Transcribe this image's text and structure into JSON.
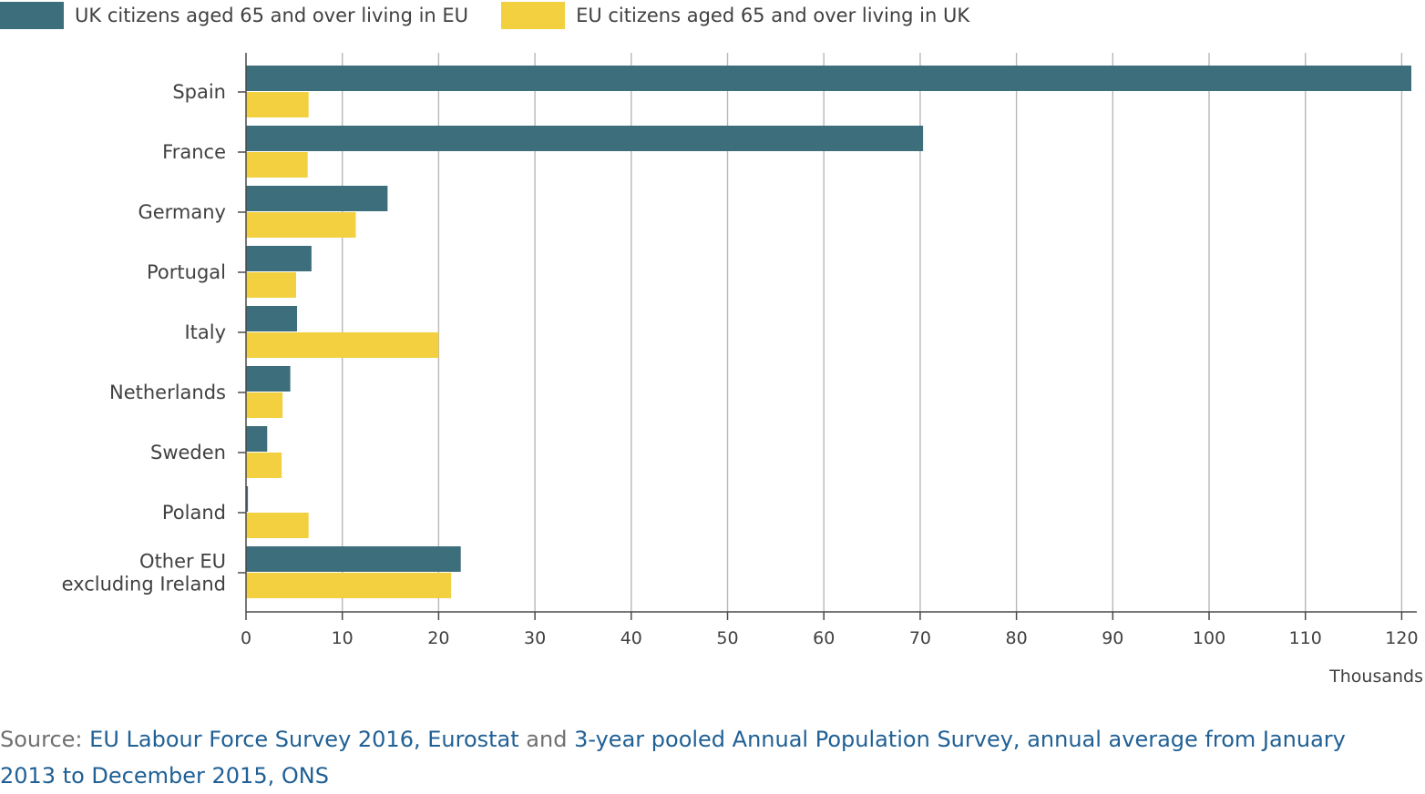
{
  "chart_data": {
    "type": "bar",
    "orientation": "horizontal",
    "categories": [
      "Spain",
      "France",
      "Germany",
      "Portugal",
      "Italy",
      "Netherlands",
      "Sweden",
      "Poland",
      "Other EU excluding Ireland"
    ],
    "category_lines": [
      [
        "Spain"
      ],
      [
        "France"
      ],
      [
        "Germany"
      ],
      [
        "Portugal"
      ],
      [
        "Italy"
      ],
      [
        "Netherlands"
      ],
      [
        "Sweden"
      ],
      [
        "Poland"
      ],
      [
        "Other EU",
        "excluding Ireland"
      ]
    ],
    "series": [
      {
        "name": "UK citizens aged 65 and over living in EU",
        "color": "#3d6e7c",
        "values": [
          121.0,
          70.3,
          14.7,
          6.8,
          5.3,
          4.6,
          2.2,
          0.2,
          22.3
        ]
      },
      {
        "name": "EU citizens aged 65 and over living in UK",
        "color": "#f2d03f",
        "values": [
          6.5,
          6.4,
          11.4,
          5.2,
          20.0,
          3.8,
          3.7,
          6.5,
          21.3
        ]
      }
    ],
    "xlabel": "Thousands",
    "xlim": [
      0,
      121
    ],
    "xticks": [
      0,
      10,
      20,
      30,
      40,
      50,
      60,
      70,
      80,
      90,
      100,
      110,
      120
    ],
    "grid": "vertical",
    "legend_position": "top-left"
  },
  "source": {
    "prefix": "Source: ",
    "link1": "EU Labour Force Survey 2016, Eurostat",
    "conjunction": " and ",
    "link2": "3-year pooled Annual Population Survey, annual average from January 2013 to December 2015, ONS"
  },
  "colors": {
    "axis": "#4a4a4a",
    "grid": "#b8b8b8",
    "link": "#206095",
    "muted_text": "#707071"
  }
}
